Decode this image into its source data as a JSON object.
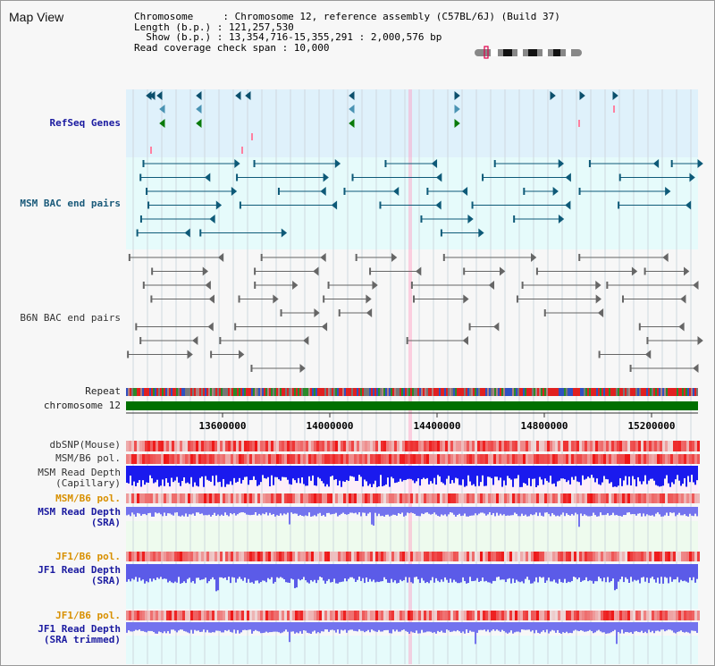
{
  "header": {
    "title": "Map View",
    "info_lines": [
      "Chromosome     : Chromosome 12, reference assembly (C57BL/6J) (Build 37)",
      "Length (b.p.) : 121,257,530",
      "  Show (b.p.) : 13,354,716-15,355,291 : 2,000,576 bp",
      "Read coverage check span : 10,000"
    ]
  },
  "tracks": {
    "refseq": "RefSeq Genes",
    "msm_bac": "MSM BAC end pairs",
    "b6n_bac": "B6N BAC end pairs",
    "repeat": "Repeat",
    "chromosome": "chromosome 12",
    "dbsnp": "dbSNP(Mouse)",
    "msm_b6_pol": "MSM/B6 pol.",
    "msm_depth_cap_1": "MSM Read Depth",
    "msm_depth_cap_2": "(Capillary)",
    "msm_b6_pol_2": "MSM/B6 pol.",
    "msm_depth_sra_1": "MSM Read Depth",
    "msm_depth_sra_2": "(SRA)",
    "jf1_pol": "JF1/B6 pol.",
    "jf1_depth_1": "JF1 Read Depth",
    "jf1_depth_2": "(SRA)",
    "jf1_pol_2": "JF1/B6 pol.",
    "jf1_trim_1": "JF1 Read Depth",
    "jf1_trim_2": "(SRA trimmed)"
  },
  "axis": {
    "ticks": [
      "13600000",
      "14000000",
      "14400000",
      "14800000",
      "15200000"
    ]
  },
  "colors": {
    "refseq_bg": "#dff1fb",
    "msm_bg": "#e6fbfb",
    "b6n_bg": "#f7f7f7",
    "msm_feature": "#0e5a78",
    "b6n_feature": "#666666",
    "gene_blue": "#0b4f6c",
    "gene_green": "#0a7a0a",
    "chromosome_bar": "#007000",
    "repeat_red": "#e02020",
    "depth_blue": "#1a1aee",
    "depth_violet": "#7373ee",
    "pol_red": "#ee2222",
    "selection_pink": "#ff9cc0"
  },
  "icons": {
    "ideogram": "chromosome-ideogram-icon"
  }
}
